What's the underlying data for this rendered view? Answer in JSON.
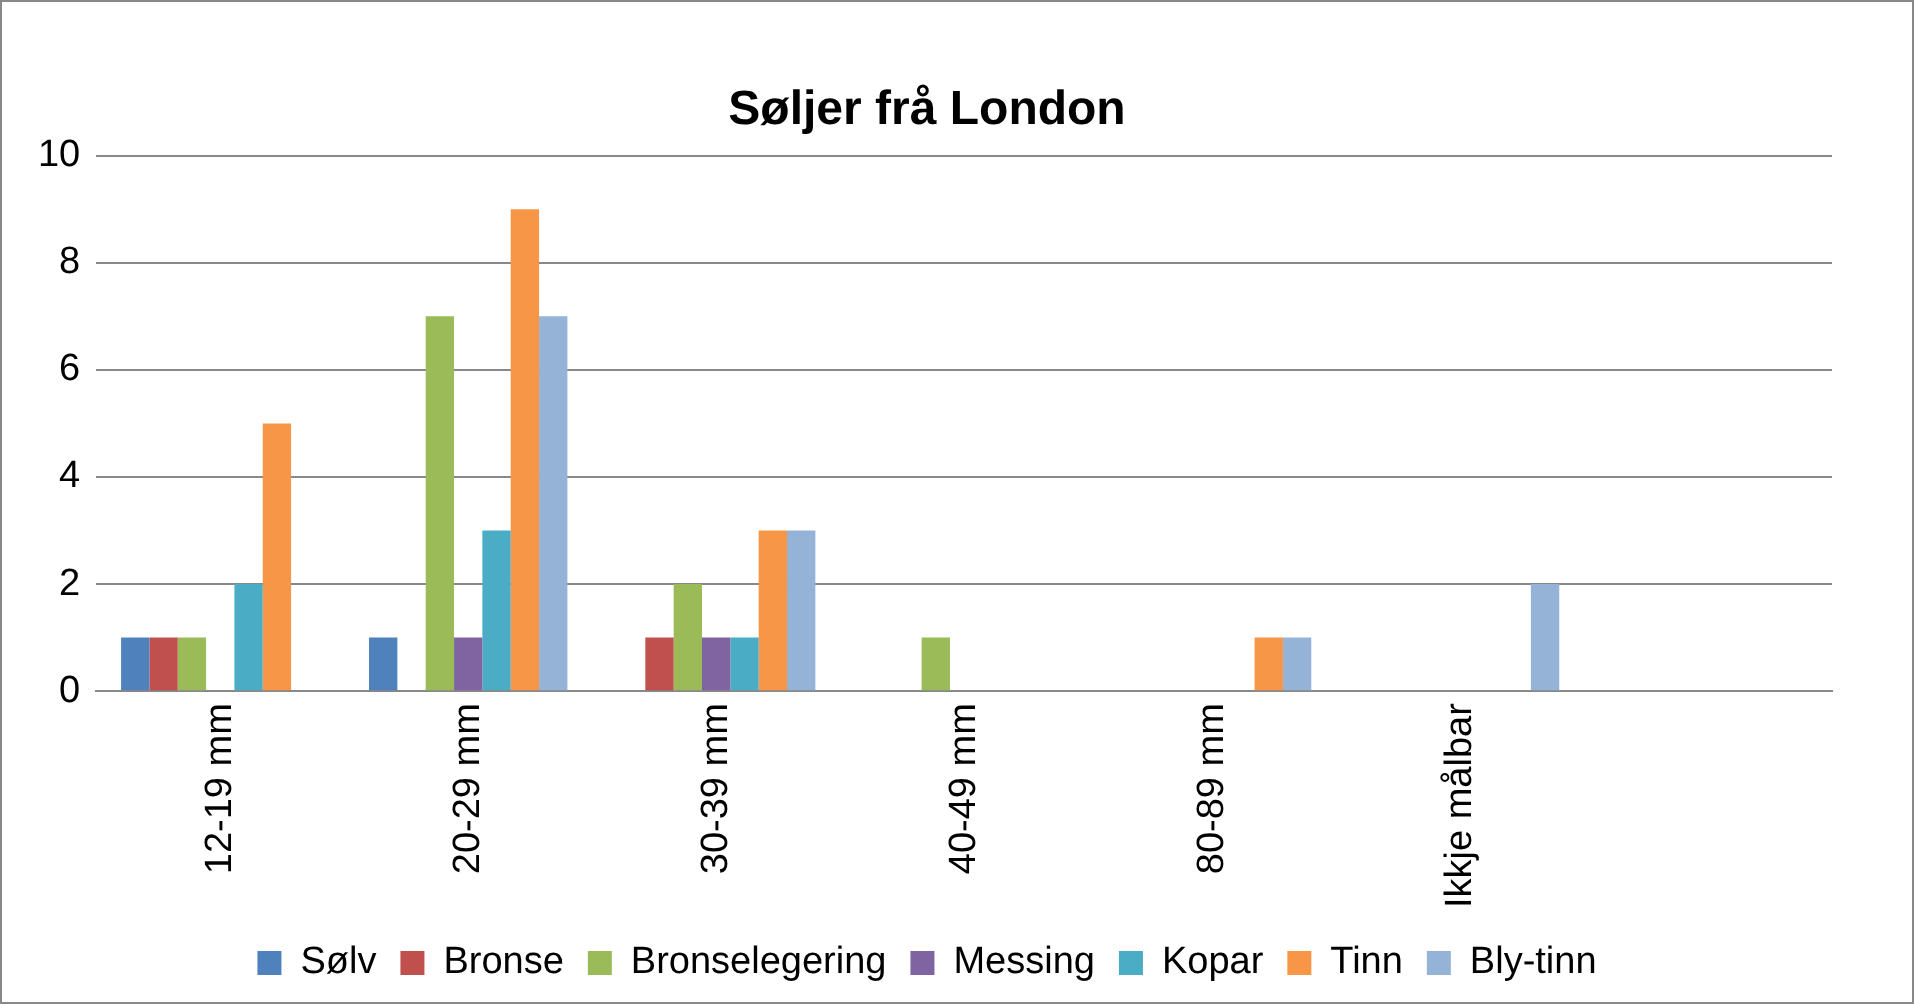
{
  "chart_data": {
    "type": "bar",
    "title": "Søljer frå London",
    "categories": [
      "12-19 mm",
      "20-29 mm",
      "30-39 mm",
      "40-49 mm",
      "80-89 mm",
      "Ikkje målbar",
      null
    ],
    "series": [
      {
        "name": "Sølv",
        "color": "#4f81bd",
        "values": [
          1,
          1,
          null,
          null,
          null,
          null,
          null
        ]
      },
      {
        "name": "Bronse",
        "color": "#c0504d",
        "values": [
          1,
          null,
          1,
          null,
          null,
          null,
          null
        ]
      },
      {
        "name": "Bronselegering",
        "color": "#9bbb59",
        "values": [
          1,
          7,
          2,
          1,
          null,
          null,
          null
        ]
      },
      {
        "name": "Messing",
        "color": "#8064a2",
        "values": [
          null,
          1,
          1,
          null,
          null,
          null,
          null
        ]
      },
      {
        "name": "Kopar",
        "color": "#4bacc6",
        "values": [
          2,
          3,
          1,
          null,
          null,
          null,
          null
        ]
      },
      {
        "name": "Tinn",
        "color": "#f79646",
        "values": [
          5,
          9,
          3,
          null,
          1,
          null,
          null
        ]
      },
      {
        "name": "Bly-tinn",
        "color": "#95b3d7",
        "values": [
          null,
          7,
          3,
          null,
          1,
          2,
          null
        ]
      }
    ],
    "ylim": [
      0,
      10
    ],
    "yticks": [
      0,
      2,
      4,
      6,
      8,
      10
    ],
    "grid": "y",
    "legend": "bottom"
  }
}
